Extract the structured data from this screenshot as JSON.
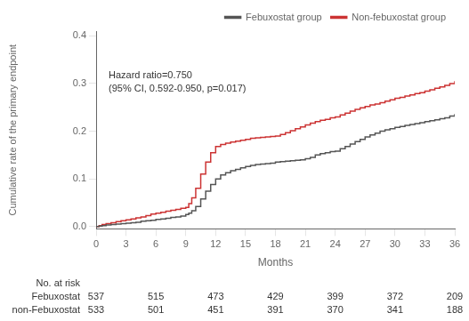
{
  "chart_data": {
    "type": "step",
    "xlabel": "Months",
    "ylabel": "Cumulative rate of the primary endpoint",
    "xlim": [
      0,
      36
    ],
    "ylim": [
      -0.005,
      0.41
    ],
    "xticks": [
      0,
      3,
      6,
      9,
      12,
      15,
      18,
      21,
      24,
      27,
      30,
      33,
      36
    ],
    "yticks": [
      {
        "value": 0,
        "label": "0.0"
      },
      0.1,
      0.2,
      0.3,
      0.4
    ],
    "grid": false,
    "legend": "upper right",
    "annotations": [
      "Hazard ratio=0.750",
      "(95% CI, 0.592-0.950, p=0.017)"
    ],
    "x": [
      0,
      0.3,
      0.6,
      1,
      1.5,
      2,
      2.5,
      3,
      3.5,
      4,
      4.5,
      5,
      5.5,
      6,
      6.5,
      7,
      7.5,
      8,
      8.5,
      9,
      9.3,
      9.6,
      10,
      10.5,
      11,
      11.5,
      12,
      12.5,
      13,
      13.5,
      14,
      14.5,
      15,
      15.5,
      16,
      16.5,
      17,
      17.5,
      18,
      18.5,
      19,
      19.5,
      20,
      20.5,
      21,
      21.5,
      22,
      22.5,
      23,
      23.5,
      24,
      24.5,
      25,
      25.5,
      26,
      26.5,
      27,
      27.5,
      28,
      28.5,
      29,
      29.5,
      30,
      30.5,
      31,
      31.5,
      32,
      32.5,
      33,
      33.5,
      34,
      34.5,
      35,
      35.5,
      36
    ],
    "series": [
      {
        "name": "Febuxostat group",
        "color": "#555555",
        "values": [
          0,
          0.001,
          0.002,
          0.003,
          0.004,
          0.005,
          0.006,
          0.007,
          0.008,
          0.009,
          0.011,
          0.012,
          0.013,
          0.015,
          0.016,
          0.017,
          0.019,
          0.02,
          0.022,
          0.025,
          0.028,
          0.033,
          0.042,
          0.058,
          0.074,
          0.088,
          0.1,
          0.108,
          0.113,
          0.117,
          0.12,
          0.123,
          0.126,
          0.128,
          0.13,
          0.131,
          0.132,
          0.133,
          0.135,
          0.136,
          0.137,
          0.138,
          0.139,
          0.14,
          0.142,
          0.145,
          0.15,
          0.153,
          0.155,
          0.157,
          0.158,
          0.163,
          0.168,
          0.173,
          0.178,
          0.183,
          0.188,
          0.192,
          0.196,
          0.2,
          0.203,
          0.205,
          0.208,
          0.21,
          0.212,
          0.214,
          0.216,
          0.218,
          0.22,
          0.222,
          0.224,
          0.226,
          0.228,
          0.232,
          0.236
        ]
      },
      {
        "name": "Non-febuxostat group",
        "color": "#cc3333",
        "values": [
          0,
          0.002,
          0.004,
          0.006,
          0.008,
          0.01,
          0.012,
          0.014,
          0.016,
          0.018,
          0.02,
          0.023,
          0.026,
          0.028,
          0.03,
          0.032,
          0.034,
          0.036,
          0.038,
          0.04,
          0.048,
          0.06,
          0.08,
          0.11,
          0.135,
          0.155,
          0.168,
          0.172,
          0.175,
          0.177,
          0.179,
          0.181,
          0.183,
          0.185,
          0.186,
          0.187,
          0.188,
          0.189,
          0.19,
          0.193,
          0.197,
          0.201,
          0.205,
          0.209,
          0.213,
          0.217,
          0.22,
          0.223,
          0.225,
          0.228,
          0.23,
          0.234,
          0.238,
          0.242,
          0.246,
          0.249,
          0.252,
          0.255,
          0.257,
          0.26,
          0.263,
          0.266,
          0.269,
          0.271,
          0.274,
          0.276,
          0.279,
          0.281,
          0.284,
          0.287,
          0.29,
          0.293,
          0.296,
          0.3,
          0.305
        ]
      }
    ],
    "at_risk": {
      "title": "No. at risk",
      "x": [
        0,
        6,
        12,
        18,
        24,
        30,
        36
      ],
      "rows": [
        {
          "name": "Febuxostat",
          "values": [
            537,
            515,
            473,
            429,
            399,
            372,
            209
          ]
        },
        {
          "name": "non-Febuxostat",
          "values": [
            533,
            501,
            451,
            391,
            370,
            341,
            188
          ]
        }
      ]
    }
  }
}
